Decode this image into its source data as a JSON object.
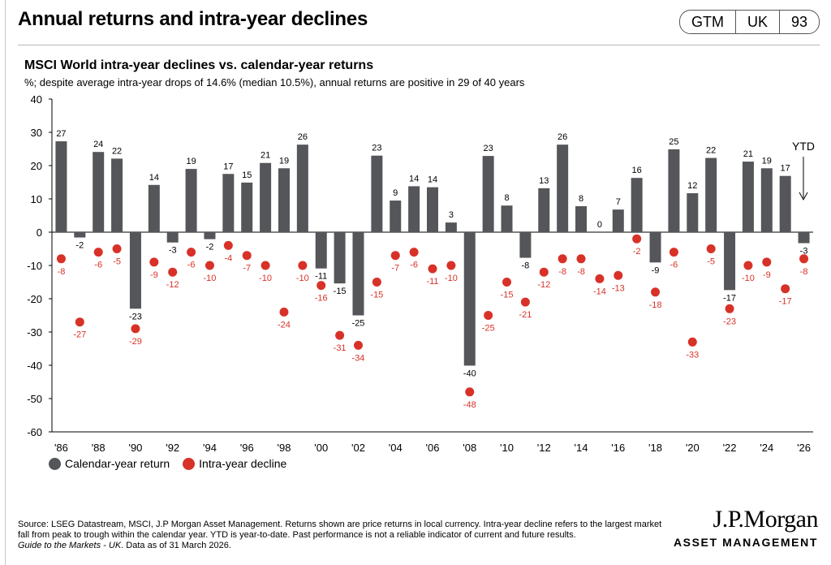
{
  "header": {
    "title": "Annual returns and intra-year declines",
    "badges": [
      "GTM",
      "UK",
      "93"
    ]
  },
  "chart_data": {
    "type": "bar",
    "title": "MSCI World intra-year declines vs. calendar-year returns",
    "subtitle": "%; despite average intra-year drops of 14.6% (median 10.5%), annual returns are positive in 29 of 40 years",
    "ylim": [
      -60,
      40
    ],
    "yticks": [
      40,
      30,
      20,
      10,
      0,
      -10,
      -20,
      -30,
      -40,
      -50,
      -60
    ],
    "x": [
      1986,
      1987,
      1988,
      1989,
      1990,
      1991,
      1992,
      1993,
      1994,
      1995,
      1996,
      1997,
      1998,
      1999,
      2000,
      2001,
      2002,
      2003,
      2004,
      2005,
      2006,
      2007,
      2008,
      2009,
      2010,
      2011,
      2012,
      2013,
      2014,
      2015,
      2016,
      2017,
      2018,
      2019,
      2020,
      2021,
      2022,
      2023,
      2024,
      2025,
      2026
    ],
    "xtick_labels": [
      "'86",
      "'88",
      "'90",
      "'92",
      "'94",
      "'96",
      "'98",
      "'00",
      "'02",
      "'04",
      "'06",
      "'08",
      "'10",
      "'12",
      "'14",
      "'16",
      "'18",
      "'20",
      "'22",
      "'24",
      "'26"
    ],
    "series": [
      {
        "name": "Calendar-year return",
        "kind": "bar",
        "color": "#54565a",
        "values": [
          27.3,
          -1.6,
          24.1,
          22.1,
          -23.0,
          14.2,
          -3.1,
          19.0,
          -2.1,
          17.5,
          14.9,
          20.8,
          19.2,
          26.3,
          -10.9,
          -15.4,
          -25.0,
          23.0,
          9.5,
          13.8,
          13.5,
          2.9,
          -40.1,
          22.9,
          8.0,
          -7.7,
          13.2,
          26.3,
          7.8,
          0.0,
          6.8,
          16.3,
          -9.1,
          24.9,
          11.7,
          22.3,
          -17.4,
          21.2,
          19.2,
          16.9,
          -3.3
        ],
        "labels": [
          "27",
          "-2",
          "24",
          "22",
          "-23",
          "14",
          "-3",
          "19",
          "-2",
          "17",
          "15",
          "21",
          "19",
          "26",
          "-11",
          "-15",
          "-25",
          "23",
          "9",
          "14",
          "14",
          "3",
          "-40",
          "23",
          "8",
          "-8",
          "13",
          "26",
          "8",
          "0",
          "7",
          "16",
          "-9",
          "25",
          "12",
          "22",
          "-17",
          "21",
          "19",
          "17",
          "-3"
        ]
      },
      {
        "name": "Intra-year decline",
        "kind": "dot",
        "color": "#d83128",
        "values": [
          -8,
          -27,
          -6,
          -5,
          -29,
          -9,
          -12,
          -6,
          -10,
          -4,
          -7,
          -10,
          -24,
          -10,
          -16,
          -31,
          -34,
          -15,
          -7,
          -6,
          -11,
          -10,
          -48,
          -25,
          -15,
          -21,
          -12,
          -8,
          -8,
          -14,
          -13,
          -2,
          -18,
          -6,
          -33,
          -5,
          -23,
          -10,
          -9,
          -17,
          -8
        ],
        "labels": [
          "-8",
          "-27",
          "-6",
          "-5",
          "-29",
          "-9",
          "-12",
          "-6",
          "-10",
          "-4",
          "-7",
          "-10",
          "-24",
          "-10",
          "-16",
          "-31",
          "-34",
          "-15",
          "-7",
          "-6",
          "-11",
          "-10",
          "-48",
          "-25",
          "-15",
          "-21",
          "-12",
          "-8",
          "-8",
          "-14",
          "-13",
          "-2",
          "-18",
          "-6",
          "-33",
          "-5",
          "-23",
          "-10",
          "-9",
          "-17",
          "-8"
        ]
      }
    ],
    "annotation": "YTD",
    "legend": "bottom-left"
  },
  "footer": {
    "source": "Source: LSEG Datastream, MSCI, J.P Morgan Asset Management. Returns shown are price returns in local currency. Intra-year decline refers to the largest market fall from peak to trough within the calendar year. YTD is year-to-date. Past performance is not a reliable indicator of current and future results.",
    "guide": "Guide to the Markets - UK",
    "asof": ". Data as of 31 March 2026."
  },
  "logo": {
    "main": "J.P.Morgan",
    "sub": "ASSET MANAGEMENT"
  }
}
